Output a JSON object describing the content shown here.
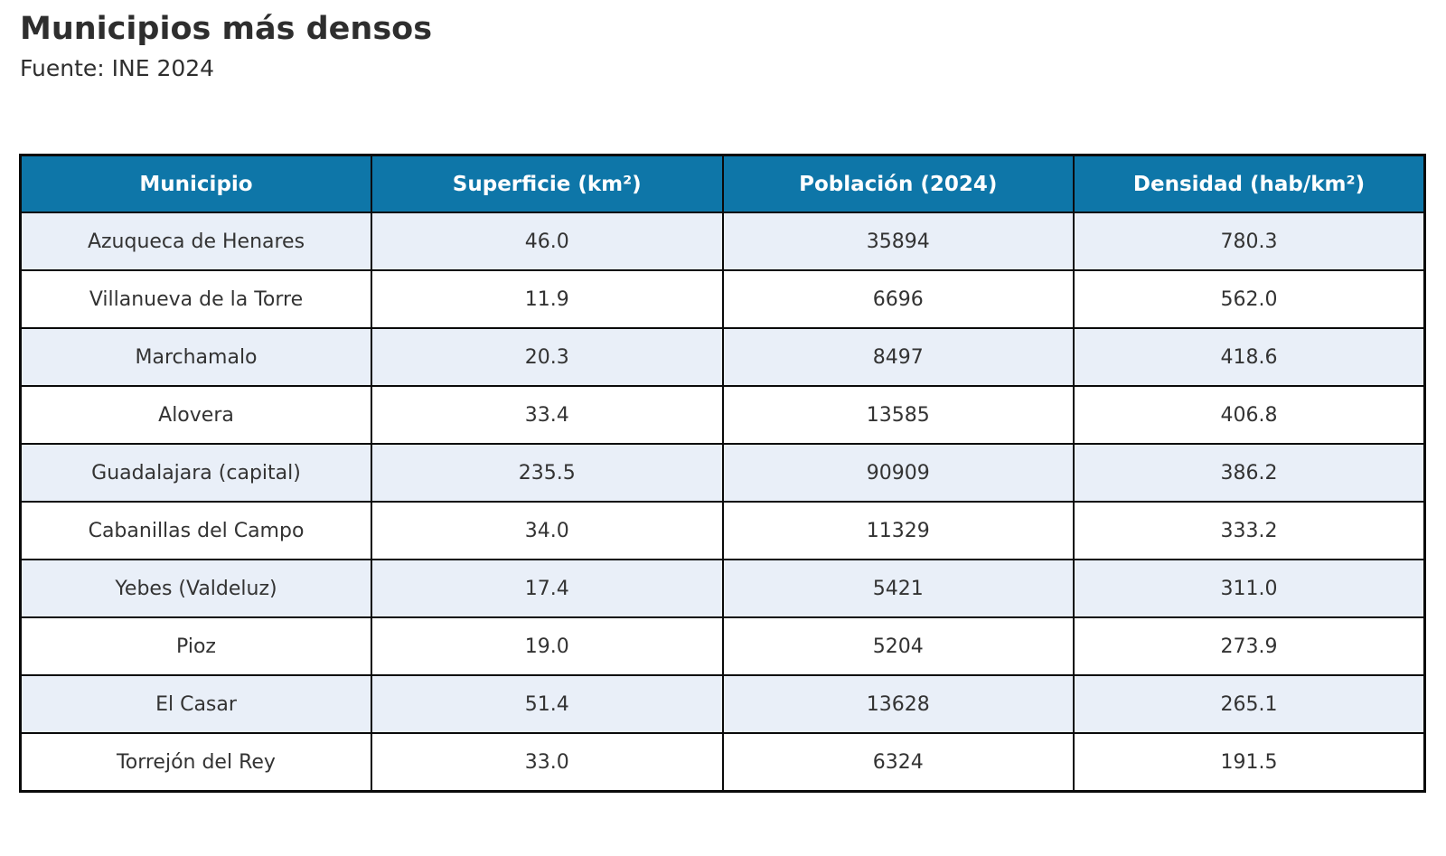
{
  "page": {
    "title": "Municipios más densos",
    "subtitle": "Fuente: INE 2024"
  },
  "colors": {
    "header_bg": "#0e76a8",
    "header_text": "#ffffff",
    "row_alt_bg": "#e9eff8",
    "row_bg": "#ffffff",
    "border": "#0a0a0a",
    "text": "#333333",
    "title_text": "#2e2e2e"
  },
  "table": {
    "headers": [
      "Municipio",
      "Superficie (km²)",
      "Población (2024)",
      "Densidad (hab/km²)"
    ],
    "rows": [
      {
        "municipio": "Azuqueca de Henares",
        "superficie": "46.0",
        "poblacion": "35894",
        "densidad": "780.3"
      },
      {
        "municipio": "Villanueva de la Torre",
        "superficie": "11.9",
        "poblacion": "6696",
        "densidad": "562.0"
      },
      {
        "municipio": "Marchamalo",
        "superficie": "20.3",
        "poblacion": "8497",
        "densidad": "418.6"
      },
      {
        "municipio": "Alovera",
        "superficie": "33.4",
        "poblacion": "13585",
        "densidad": "406.8"
      },
      {
        "municipio": "Guadalajara (capital)",
        "superficie": "235.5",
        "poblacion": "90909",
        "densidad": "386.2"
      },
      {
        "municipio": "Cabanillas del Campo",
        "superficie": "34.0",
        "poblacion": "11329",
        "densidad": "333.2"
      },
      {
        "municipio": "Yebes (Valdeluz)",
        "superficie": "17.4",
        "poblacion": "5421",
        "densidad": "311.0"
      },
      {
        "municipio": "Pioz",
        "superficie": "19.0",
        "poblacion": "5204",
        "densidad": "273.9"
      },
      {
        "municipio": "El Casar",
        "superficie": "51.4",
        "poblacion": "13628",
        "densidad": "265.1"
      },
      {
        "municipio": "Torrejón del Rey",
        "superficie": "33.0",
        "poblacion": "6324",
        "densidad": "191.5"
      }
    ]
  },
  "chart_data": {
    "type": "table",
    "title": "Municipios más densos",
    "subtitle": "Fuente: INE 2024",
    "columns": [
      "Municipio",
      "Superficie (km²)",
      "Población (2024)",
      "Densidad (hab/km²)"
    ],
    "rows": [
      [
        "Azuqueca de Henares",
        46.0,
        35894,
        780.3
      ],
      [
        "Villanueva de la Torre",
        11.9,
        6696,
        562.0
      ],
      [
        "Marchamalo",
        20.3,
        8497,
        418.6
      ],
      [
        "Alovera",
        33.4,
        13585,
        406.8
      ],
      [
        "Guadalajara (capital)",
        235.5,
        90909,
        386.2
      ],
      [
        "Cabanillas del Campo",
        34.0,
        11329,
        333.2
      ],
      [
        "Yebes (Valdeluz)",
        17.4,
        5421,
        311.0
      ],
      [
        "Pioz",
        19.0,
        5204,
        273.9
      ],
      [
        "El Casar",
        51.4,
        13628,
        265.1
      ],
      [
        "Torrejón del Rey",
        33.0,
        6324,
        191.5
      ]
    ]
  }
}
